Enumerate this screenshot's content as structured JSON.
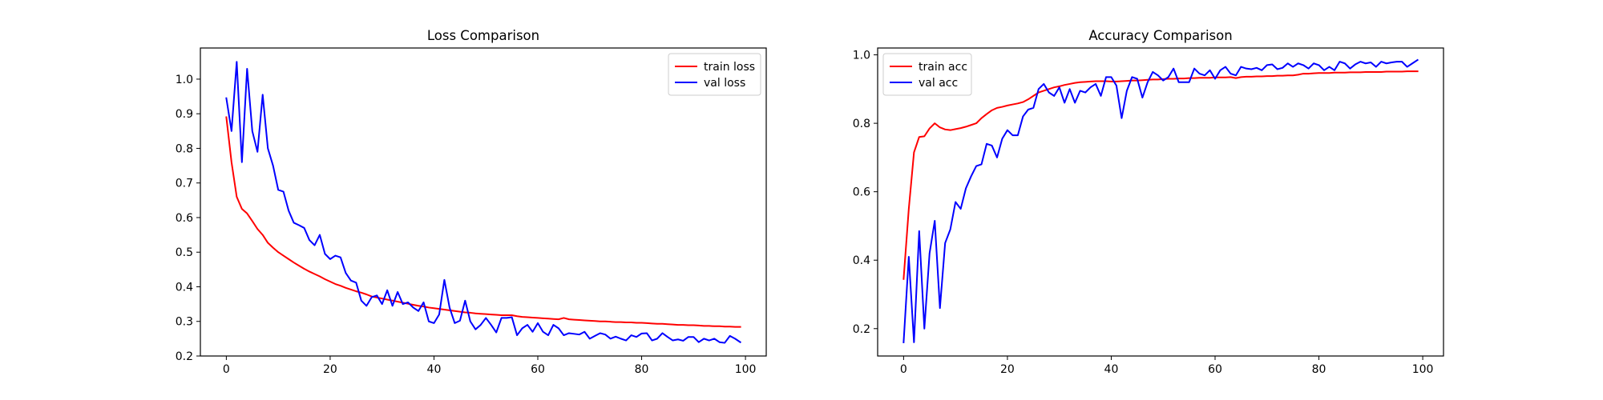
{
  "chart_data": [
    {
      "type": "line",
      "title": "Loss Comparison",
      "xlabel": "",
      "ylabel": "",
      "xlim": [
        -5,
        104
      ],
      "ylim": [
        0.2,
        1.09
      ],
      "xticks": [
        0,
        20,
        40,
        60,
        80,
        100
      ],
      "yticks": [
        0.2,
        0.3,
        0.4,
        0.5,
        0.6,
        0.7,
        0.8,
        0.9,
        1.0
      ],
      "grid": false,
      "legend": "upper right",
      "series": [
        {
          "name": "train loss",
          "color": "#ff0000",
          "x": [
            0,
            1,
            2,
            3,
            4,
            5,
            6,
            7,
            8,
            9,
            10,
            11,
            12,
            13,
            14,
            15,
            16,
            17,
            18,
            19,
            20,
            21,
            22,
            23,
            24,
            25,
            26,
            27,
            28,
            29,
            30,
            31,
            32,
            33,
            34,
            35,
            36,
            37,
            38,
            39,
            40,
            41,
            42,
            43,
            44,
            45,
            46,
            47,
            48,
            49,
            50,
            51,
            52,
            53,
            54,
            55,
            56,
            57,
            58,
            59,
            60,
            61,
            62,
            63,
            64,
            65,
            66,
            67,
            68,
            69,
            70,
            71,
            72,
            73,
            74,
            75,
            76,
            77,
            78,
            79,
            80,
            81,
            82,
            83,
            84,
            85,
            86,
            87,
            88,
            89,
            90,
            91,
            92,
            93,
            94,
            95,
            96,
            97,
            98,
            99
          ],
          "y": [
            0.89,
            0.76,
            0.66,
            0.625,
            0.612,
            0.59,
            0.567,
            0.55,
            0.527,
            0.513,
            0.5,
            0.49,
            0.48,
            0.47,
            0.461,
            0.452,
            0.444,
            0.437,
            0.43,
            0.422,
            0.415,
            0.408,
            0.403,
            0.397,
            0.392,
            0.387,
            0.383,
            0.378,
            0.372,
            0.369,
            0.366,
            0.363,
            0.36,
            0.357,
            0.354,
            0.351,
            0.348,
            0.345,
            0.343,
            0.34,
            0.338,
            0.336,
            0.334,
            0.332,
            0.33,
            0.328,
            0.326,
            0.325,
            0.323,
            0.322,
            0.321,
            0.32,
            0.319,
            0.318,
            0.318,
            0.318,
            0.315,
            0.313,
            0.312,
            0.311,
            0.31,
            0.309,
            0.308,
            0.307,
            0.306,
            0.31,
            0.306,
            0.305,
            0.304,
            0.303,
            0.302,
            0.301,
            0.3,
            0.3,
            0.299,
            0.298,
            0.298,
            0.297,
            0.297,
            0.296,
            0.296,
            0.295,
            0.294,
            0.293,
            0.293,
            0.292,
            0.291,
            0.29,
            0.29,
            0.289,
            0.289,
            0.288,
            0.287,
            0.287,
            0.286,
            0.286,
            0.285,
            0.285,
            0.284,
            0.284
          ]
        },
        {
          "name": "val loss",
          "color": "#0000ff",
          "x": [
            0,
            1,
            2,
            3,
            4,
            5,
            6,
            7,
            8,
            9,
            10,
            11,
            12,
            13,
            14,
            15,
            16,
            17,
            18,
            19,
            20,
            21,
            22,
            23,
            24,
            25,
            26,
            27,
            28,
            29,
            30,
            31,
            32,
            33,
            34,
            35,
            36,
            37,
            38,
            39,
            40,
            41,
            42,
            43,
            44,
            45,
            46,
            47,
            48,
            49,
            50,
            51,
            52,
            53,
            54,
            55,
            56,
            57,
            58,
            59,
            60,
            61,
            62,
            63,
            64,
            65,
            66,
            67,
            68,
            69,
            70,
            71,
            72,
            73,
            74,
            75,
            76,
            77,
            78,
            79,
            80,
            81,
            82,
            83,
            84,
            85,
            86,
            87,
            88,
            89,
            90,
            91,
            92,
            93,
            94,
            95,
            96,
            97,
            98,
            99
          ],
          "y": [
            0.945,
            0.85,
            1.05,
            0.76,
            1.03,
            0.85,
            0.79,
            0.955,
            0.8,
            0.75,
            0.68,
            0.675,
            0.62,
            0.585,
            0.578,
            0.57,
            0.535,
            0.52,
            0.55,
            0.495,
            0.48,
            0.49,
            0.485,
            0.44,
            0.418,
            0.412,
            0.36,
            0.345,
            0.37,
            0.375,
            0.35,
            0.39,
            0.345,
            0.385,
            0.35,
            0.355,
            0.34,
            0.33,
            0.355,
            0.3,
            0.295,
            0.32,
            0.42,
            0.34,
            0.295,
            0.302,
            0.36,
            0.3,
            0.277,
            0.29,
            0.31,
            0.29,
            0.268,
            0.31,
            0.31,
            0.312,
            0.26,
            0.28,
            0.29,
            0.27,
            0.295,
            0.27,
            0.26,
            0.29,
            0.28,
            0.26,
            0.266,
            0.264,
            0.262,
            0.27,
            0.25,
            0.258,
            0.266,
            0.262,
            0.25,
            0.256,
            0.25,
            0.245,
            0.26,
            0.255,
            0.265,
            0.266,
            0.245,
            0.25,
            0.266,
            0.255,
            0.245,
            0.248,
            0.244,
            0.255,
            0.255,
            0.24,
            0.25,
            0.245,
            0.25,
            0.24,
            0.238,
            0.258,
            0.25,
            0.24
          ]
        }
      ]
    },
    {
      "type": "line",
      "title": "Accuracy Comparison",
      "xlabel": "",
      "ylabel": "",
      "xlim": [
        -5,
        104
      ],
      "ylim": [
        0.12,
        1.02
      ],
      "xticks": [
        0,
        20,
        40,
        60,
        80,
        100
      ],
      "yticks": [
        0.2,
        0.4,
        0.6,
        0.8,
        1.0
      ],
      "grid": false,
      "legend": "upper left",
      "series": [
        {
          "name": "train acc",
          "color": "#ff0000",
          "x": [
            0,
            1,
            2,
            3,
            4,
            5,
            6,
            7,
            8,
            9,
            10,
            11,
            12,
            13,
            14,
            15,
            16,
            17,
            18,
            19,
            20,
            21,
            22,
            23,
            24,
            25,
            26,
            27,
            28,
            29,
            30,
            31,
            32,
            33,
            34,
            35,
            36,
            37,
            38,
            39,
            40,
            41,
            42,
            43,
            44,
            45,
            46,
            47,
            48,
            49,
            50,
            51,
            52,
            53,
            54,
            55,
            56,
            57,
            58,
            59,
            60,
            61,
            62,
            63,
            64,
            65,
            66,
            67,
            68,
            69,
            70,
            71,
            72,
            73,
            74,
            75,
            76,
            77,
            78,
            79,
            80,
            81,
            82,
            83,
            84,
            85,
            86,
            87,
            88,
            89,
            90,
            91,
            92,
            93,
            94,
            95,
            96,
            97,
            98,
            99
          ],
          "y": [
            0.345,
            0.55,
            0.715,
            0.76,
            0.762,
            0.785,
            0.8,
            0.788,
            0.782,
            0.78,
            0.783,
            0.786,
            0.79,
            0.795,
            0.8,
            0.815,
            0.827,
            0.838,
            0.845,
            0.848,
            0.852,
            0.855,
            0.858,
            0.862,
            0.87,
            0.88,
            0.89,
            0.895,
            0.9,
            0.905,
            0.908,
            0.912,
            0.915,
            0.918,
            0.92,
            0.921,
            0.922,
            0.923,
            0.923,
            0.923,
            0.922,
            0.922,
            0.923,
            0.924,
            0.925,
            0.925,
            0.926,
            0.927,
            0.928,
            0.928,
            0.929,
            0.93,
            0.93,
            0.931,
            0.931,
            0.932,
            0.932,
            0.933,
            0.933,
            0.933,
            0.934,
            0.934,
            0.934,
            0.935,
            0.932,
            0.935,
            0.936,
            0.936,
            0.937,
            0.937,
            0.938,
            0.938,
            0.939,
            0.939,
            0.94,
            0.94,
            0.942,
            0.945,
            0.945,
            0.946,
            0.947,
            0.947,
            0.947,
            0.948,
            0.948,
            0.948,
            0.949,
            0.949,
            0.949,
            0.95,
            0.95,
            0.95,
            0.95,
            0.951,
            0.951,
            0.951,
            0.951,
            0.952,
            0.952,
            0.952
          ]
        },
        {
          "name": "val acc",
          "color": "#0000ff",
          "x": [
            0,
            1,
            2,
            3,
            4,
            5,
            6,
            7,
            8,
            9,
            10,
            11,
            12,
            13,
            14,
            15,
            16,
            17,
            18,
            19,
            20,
            21,
            22,
            23,
            24,
            25,
            26,
            27,
            28,
            29,
            30,
            31,
            32,
            33,
            34,
            35,
            36,
            37,
            38,
            39,
            40,
            41,
            42,
            43,
            44,
            45,
            46,
            47,
            48,
            49,
            50,
            51,
            52,
            53,
            54,
            55,
            56,
            57,
            58,
            59,
            60,
            61,
            62,
            63,
            64,
            65,
            66,
            67,
            68,
            69,
            70,
            71,
            72,
            73,
            74,
            75,
            76,
            77,
            78,
            79,
            80,
            81,
            82,
            83,
            84,
            85,
            86,
            87,
            88,
            89,
            90,
            91,
            92,
            93,
            94,
            95,
            96,
            97,
            98,
            99
          ],
          "y": [
            0.16,
            0.41,
            0.16,
            0.485,
            0.2,
            0.42,
            0.515,
            0.26,
            0.45,
            0.49,
            0.57,
            0.55,
            0.61,
            0.645,
            0.675,
            0.68,
            0.74,
            0.735,
            0.7,
            0.755,
            0.78,
            0.765,
            0.765,
            0.82,
            0.84,
            0.845,
            0.9,
            0.915,
            0.89,
            0.88,
            0.905,
            0.86,
            0.9,
            0.86,
            0.895,
            0.89,
            0.905,
            0.915,
            0.88,
            0.935,
            0.935,
            0.91,
            0.815,
            0.895,
            0.935,
            0.93,
            0.875,
            0.92,
            0.95,
            0.94,
            0.925,
            0.935,
            0.96,
            0.92,
            0.92,
            0.92,
            0.96,
            0.945,
            0.94,
            0.955,
            0.93,
            0.955,
            0.965,
            0.945,
            0.94,
            0.965,
            0.96,
            0.958,
            0.962,
            0.955,
            0.97,
            0.972,
            0.958,
            0.962,
            0.975,
            0.965,
            0.975,
            0.97,
            0.96,
            0.975,
            0.97,
            0.955,
            0.965,
            0.955,
            0.98,
            0.975,
            0.96,
            0.972,
            0.98,
            0.975,
            0.978,
            0.965,
            0.98,
            0.975,
            0.978,
            0.98,
            0.98,
            0.965,
            0.975,
            0.985
          ]
        }
      ]
    }
  ]
}
